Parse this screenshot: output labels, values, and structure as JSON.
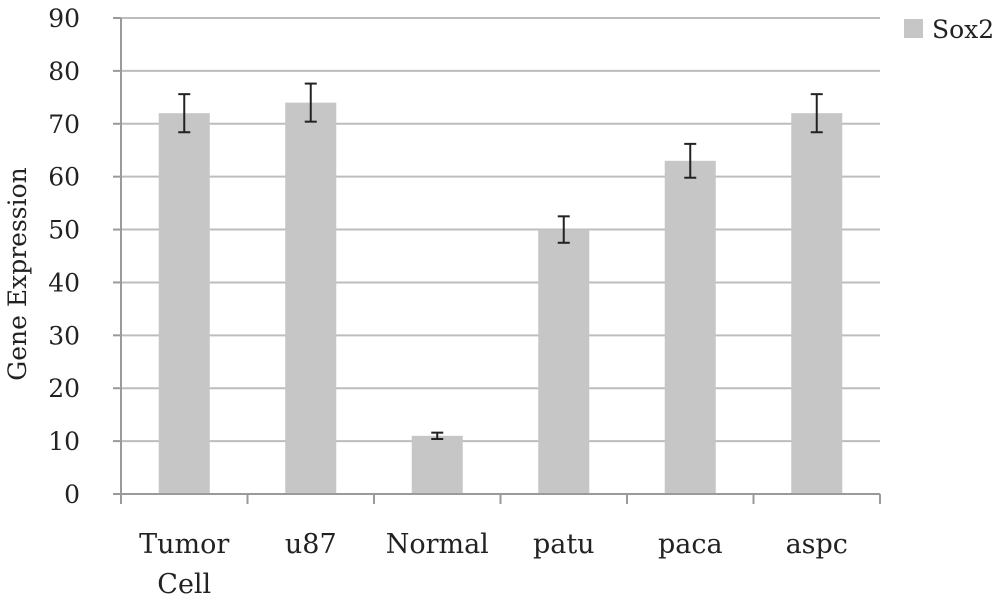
{
  "chart_data": {
    "type": "bar",
    "title": "",
    "xlabel": "",
    "ylabel": "Gene Expression",
    "ylim": [
      0,
      90
    ],
    "yticks": [
      0,
      10,
      20,
      30,
      40,
      50,
      60,
      70,
      80,
      90
    ],
    "categories": [
      [
        "Tumor",
        "Cell"
      ],
      [
        "u87"
      ],
      [
        "Normal"
      ],
      [
        "patu"
      ],
      [
        "paca"
      ],
      [
        "aspc"
      ]
    ],
    "series": [
      {
        "name": "Sox2",
        "color": "#c6c6c6",
        "values": [
          72,
          74,
          11,
          50,
          63,
          72
        ],
        "error": [
          3.6,
          3.6,
          0.6,
          2.5,
          3.2,
          3.6
        ]
      }
    ],
    "grid": true,
    "legend_position": "top-right"
  }
}
